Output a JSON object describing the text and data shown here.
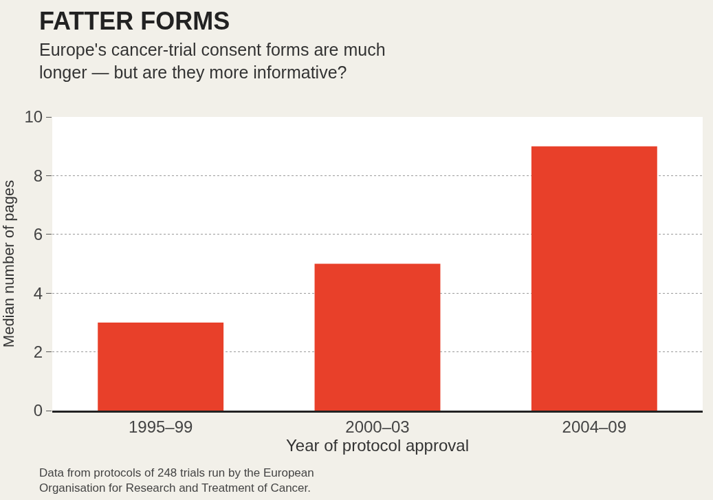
{
  "chart_data": {
    "type": "bar",
    "title": "FATTER FORMS",
    "subtitle": "Europe's cancer-trial consent forms are much longer — but are they more informative?",
    "xlabel": "Year of protocol approval",
    "ylabel": "Median number of pages",
    "categories": [
      "1995–99",
      "2000–03",
      "2004–09"
    ],
    "values": [
      3,
      5,
      9
    ],
    "color": "#e8402a",
    "ylim": [
      0,
      10
    ],
    "yticks": [
      0,
      2,
      4,
      6,
      8,
      10
    ],
    "grid": "y",
    "legend": false,
    "annotations": [
      "Data from protocols of 248 trials run by the European Organisation for Research and Treatment of Cancer."
    ]
  }
}
